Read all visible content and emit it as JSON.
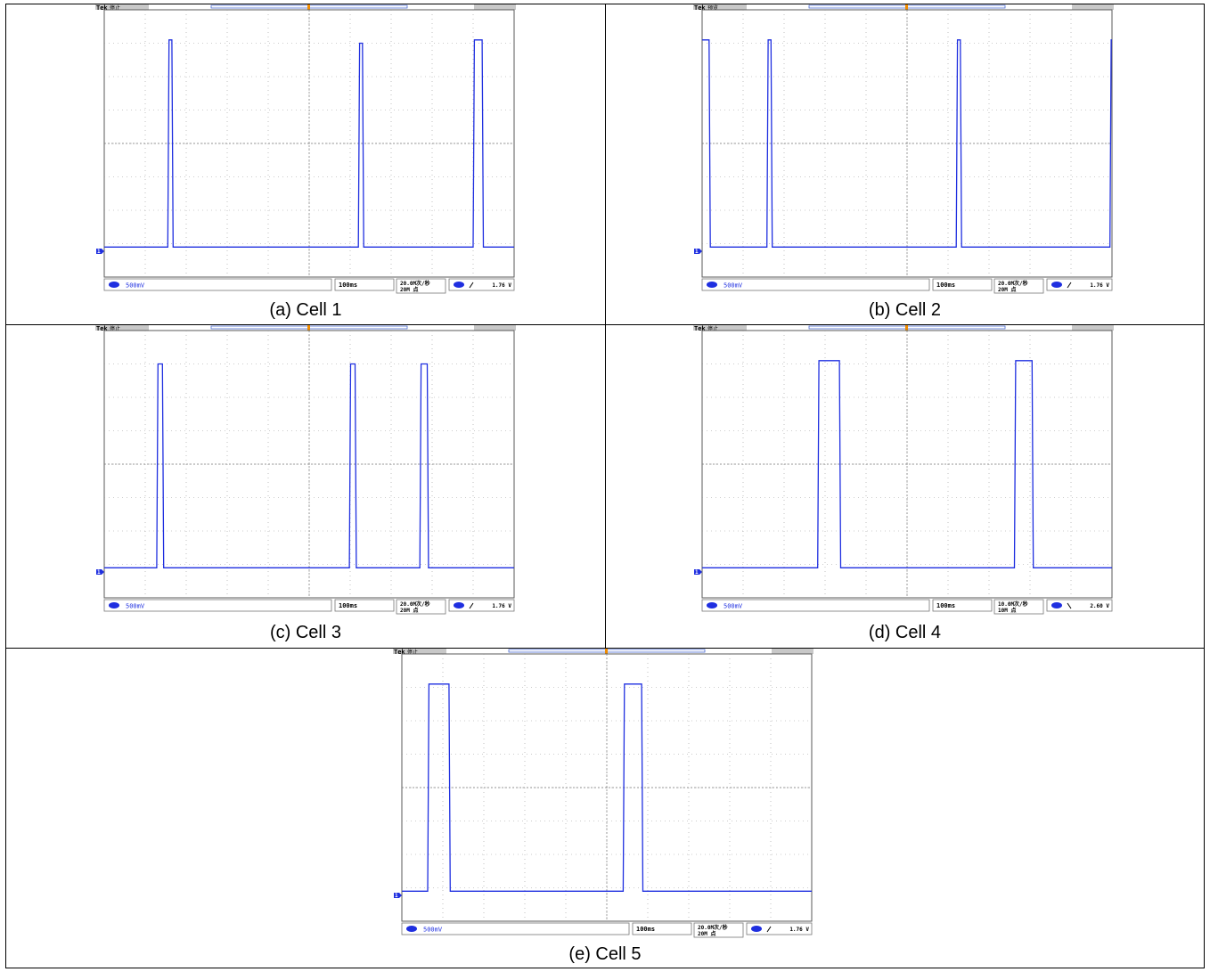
{
  "colors": {
    "trace": "#1f2fe0",
    "grid": "#9a9a9a",
    "frame": "#000000",
    "marker": "#f08c00",
    "bar": "#c8c8c8"
  },
  "panels": [
    {
      "id": "a",
      "caption": "(a)  Cell 1",
      "brand": "Tek",
      "status": "停止",
      "ch_scale": "500mV",
      "timebase": "100ms",
      "rate": "20.0M次/秒",
      "points": "20M 点",
      "trig_level": "1.76 V",
      "trig_slope": "rising"
    },
    {
      "id": "b",
      "caption": "(b)  Cell 2",
      "brand": "Tek",
      "status": "预览",
      "ch_scale": "500mV",
      "timebase": "100ms",
      "rate": "20.0M次/秒",
      "points": "20M 点",
      "trig_level": "1.76 V",
      "trig_slope": "rising"
    },
    {
      "id": "c",
      "caption": "(c)  Cell 3",
      "brand": "Tek",
      "status": "停止",
      "ch_scale": "500mV",
      "timebase": "100ms",
      "rate": "20.0M次/秒",
      "points": "20M 点",
      "trig_level": "1.76 V",
      "trig_slope": "rising"
    },
    {
      "id": "d",
      "caption": "(d)  Cell 4",
      "brand": "Tek",
      "status": "停止",
      "ch_scale": "500mV",
      "timebase": "100ms",
      "rate": "10.0M次/秒",
      "points": "10M 点",
      "trig_level": "2.60 V",
      "trig_slope": "falling"
    },
    {
      "id": "e",
      "caption": "(e)  Cell 5",
      "brand": "Tek",
      "status": "停止",
      "ch_scale": "500mV",
      "timebase": "100ms",
      "rate": "20.0M次/秒",
      "points": "20M 点",
      "trig_level": "1.76 V",
      "trig_slope": "rising"
    }
  ],
  "chart_data": [
    {
      "type": "line",
      "panel": "a",
      "xlim": [
        0,
        10
      ],
      "ylim": [
        -4,
        4
      ],
      "x_unit": "div",
      "y_unit": "div",
      "grid": true,
      "series": [
        {
          "points": [
            [
              0,
              -3.1
            ],
            [
              1.55,
              -3.1
            ],
            [
              1.58,
              3.1
            ],
            [
              1.65,
              3.1
            ],
            [
              1.68,
              -3.1
            ],
            [
              6.2,
              -3.1
            ],
            [
              6.23,
              3.0
            ],
            [
              6.3,
              3.0
            ],
            [
              6.33,
              -3.1
            ],
            [
              9.0,
              -3.1
            ],
            [
              9.03,
              3.1
            ],
            [
              9.22,
              3.1
            ],
            [
              9.25,
              -3.1
            ],
            [
              10,
              -3.1
            ]
          ]
        }
      ]
    },
    {
      "type": "line",
      "panel": "b",
      "xlim": [
        0,
        10
      ],
      "ylim": [
        -4,
        4
      ],
      "x_unit": "div",
      "y_unit": "div",
      "grid": true,
      "series": [
        {
          "points": [
            [
              0,
              3.1
            ],
            [
              0.17,
              3.1
            ],
            [
              0.2,
              -3.1
            ],
            [
              1.58,
              -3.1
            ],
            [
              1.61,
              3.1
            ],
            [
              1.68,
              3.1
            ],
            [
              1.71,
              -3.1
            ],
            [
              6.2,
              -3.1
            ],
            [
              6.23,
              3.1
            ],
            [
              6.3,
              3.1
            ],
            [
              6.33,
              -3.1
            ],
            [
              9.95,
              -3.1
            ],
            [
              9.98,
              3.1
            ],
            [
              10,
              3.1
            ]
          ]
        }
      ]
    },
    {
      "type": "line",
      "panel": "c",
      "xlim": [
        0,
        10
      ],
      "ylim": [
        -4,
        4
      ],
      "x_unit": "div",
      "y_unit": "div",
      "grid": true,
      "series": [
        {
          "points": [
            [
              0,
              -3.1
            ],
            [
              1.28,
              -3.1
            ],
            [
              1.31,
              3.0
            ],
            [
              1.42,
              3.0
            ],
            [
              1.45,
              -3.1
            ],
            [
              5.98,
              -3.1
            ],
            [
              6.01,
              3.0
            ],
            [
              6.12,
              3.0
            ],
            [
              6.15,
              -3.1
            ],
            [
              7.7,
              -3.1
            ],
            [
              7.73,
              3.0
            ],
            [
              7.88,
              3.0
            ],
            [
              7.91,
              -3.1
            ],
            [
              10,
              -3.1
            ]
          ]
        }
      ]
    },
    {
      "type": "line",
      "panel": "d",
      "xlim": [
        0,
        10
      ],
      "ylim": [
        -4,
        4
      ],
      "x_unit": "div",
      "y_unit": "div",
      "grid": true,
      "series": [
        {
          "points": [
            [
              0,
              -3.1
            ],
            [
              2.82,
              -3.1
            ],
            [
              2.85,
              3.1
            ],
            [
              3.35,
              3.1
            ],
            [
              3.38,
              -3.1
            ],
            [
              7.62,
              -3.1
            ],
            [
              7.65,
              3.1
            ],
            [
              8.05,
              3.1
            ],
            [
              8.08,
              -3.1
            ],
            [
              10,
              -3.1
            ]
          ]
        }
      ]
    },
    {
      "type": "line",
      "panel": "e",
      "xlim": [
        0,
        10
      ],
      "ylim": [
        -4,
        4
      ],
      "x_unit": "div",
      "y_unit": "div",
      "grid": true,
      "series": [
        {
          "points": [
            [
              0,
              -3.1
            ],
            [
              0.63,
              -3.1
            ],
            [
              0.66,
              3.1
            ],
            [
              1.15,
              3.1
            ],
            [
              1.18,
              -3.1
            ],
            [
              5.4,
              -3.1
            ],
            [
              5.43,
              3.1
            ],
            [
              5.85,
              3.1
            ],
            [
              5.88,
              -3.1
            ],
            [
              10,
              -3.1
            ]
          ]
        }
      ]
    }
  ]
}
